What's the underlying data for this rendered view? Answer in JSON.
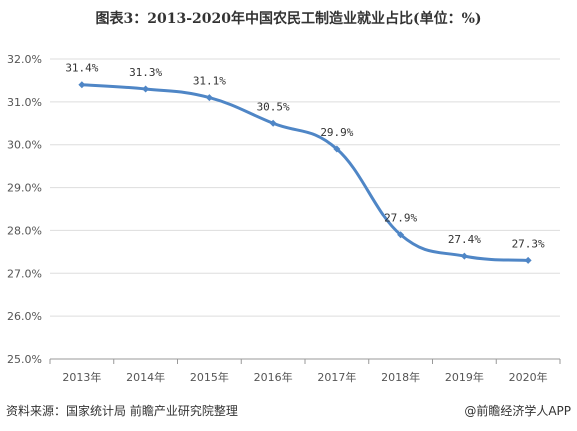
{
  "header": {
    "title": "图表3：2013-2020年中国农民工制造业就业占比(单位：%)"
  },
  "footer": {
    "source": "资料来源：国家统计局 前瞻产业研究院整理",
    "credit": "@前瞻经济学人APP"
  },
  "colors": {
    "line": "#4f86c6",
    "grid": "#dddddd",
    "axis": "#999999"
  },
  "chart_data": {
    "type": "line",
    "categories": [
      "2013年",
      "2014年",
      "2015年",
      "2016年",
      "2017年",
      "2018年",
      "2019年",
      "2020年"
    ],
    "values": [
      31.4,
      31.3,
      31.1,
      30.5,
      29.9,
      27.9,
      27.4,
      27.3
    ],
    "data_labels": [
      "31.4%",
      "31.3%",
      "31.1%",
      "30.5%",
      "29.9%",
      "27.9%",
      "27.4%",
      "27.3%"
    ],
    "yticks": [
      "25.0%",
      "26.0%",
      "27.0%",
      "28.0%",
      "29.0%",
      "30.0%",
      "31.0%",
      "32.0%"
    ],
    "ylim": [
      25,
      32
    ],
    "grid": true,
    "title": "图表3：2013-2020年中国农民工制造业就业占比(单位：%)"
  }
}
